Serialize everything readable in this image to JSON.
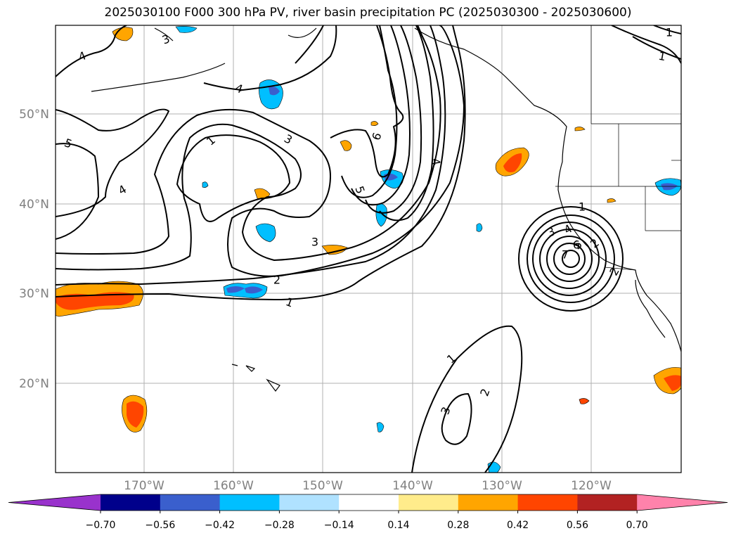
{
  "title": "2025030100 F000 300 hPa PV, river basin precipitation PC (2025030300 - 2025030600)",
  "map": {
    "lat_ticks": [
      "50°N",
      "40°N",
      "30°N",
      "20°N"
    ],
    "lon_ticks": [
      "170°W",
      "160°W",
      "150°W",
      "140°W",
      "130°W",
      "120°W"
    ],
    "contour_labels": [
      "4",
      "3",
      "4",
      "5",
      "1",
      "3",
      "4",
      "6",
      "5",
      "4",
      "3",
      "2",
      "1",
      "1",
      "1",
      "3",
      "4",
      "5",
      "6",
      "7",
      "2",
      "1",
      "2",
      "3",
      "1",
      "2"
    ]
  },
  "colorbar": {
    "tick_labels": [
      "−0.70",
      "−0.56",
      "−0.42",
      "−0.28",
      "−0.14",
      "0.14",
      "0.28",
      "0.42",
      "0.56",
      "0.70"
    ],
    "colors": [
      "#9932CC",
      "#00008B",
      "#3A5FCD",
      "#00BFFF",
      "#B0E2FF",
      "#FFFFFF",
      "#FFEC8B",
      "#FFA500",
      "#FF4500",
      "#B22222",
      "#FF82AB"
    ]
  }
}
